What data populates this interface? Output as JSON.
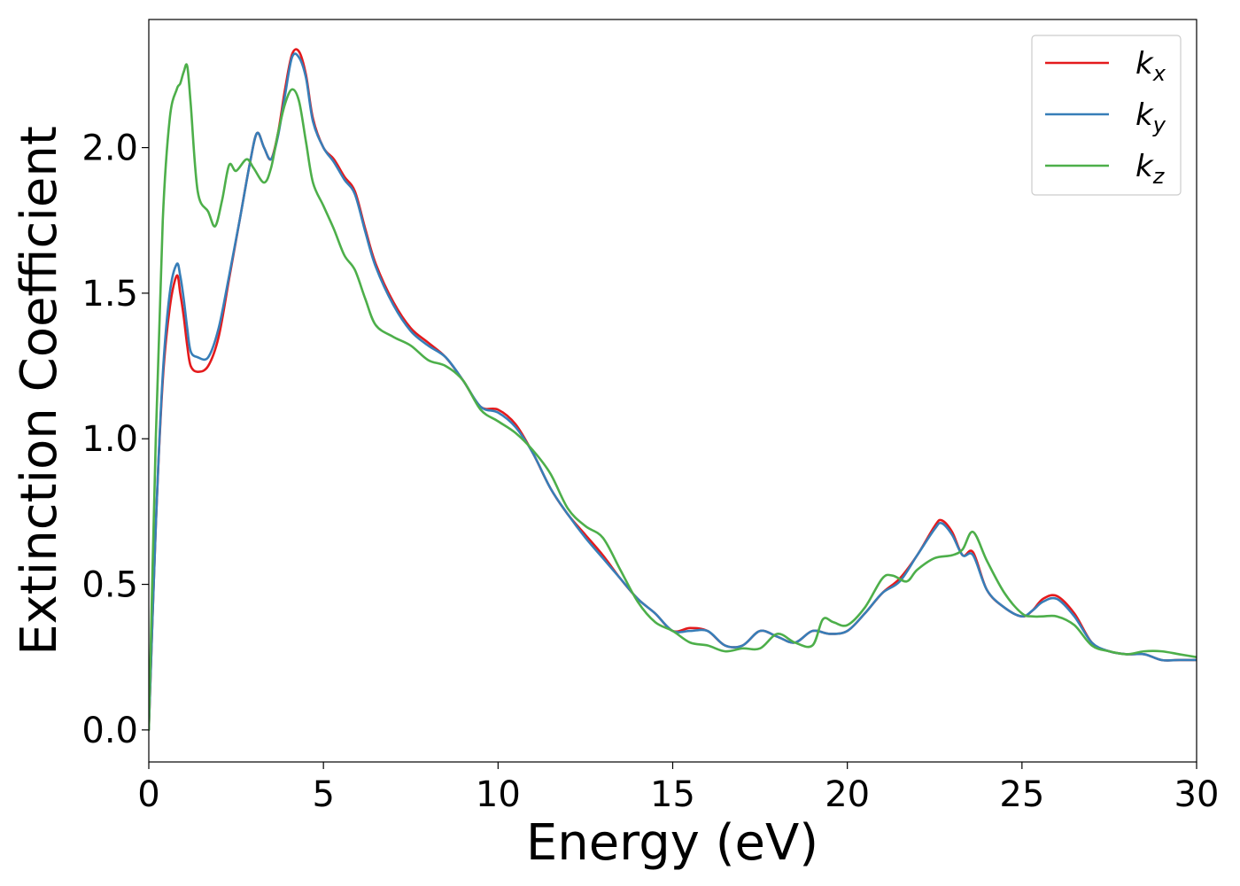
{
  "chart_data": {
    "type": "line",
    "xlabel": "Energy (eV)",
    "ylabel": "Extinction Coefficient",
    "xlim": [
      0,
      30
    ],
    "ylim": [
      -0.11,
      2.44
    ],
    "xticks": [
      0,
      5,
      10,
      15,
      20,
      25,
      30
    ],
    "xtick_labels": [
      "0",
      "5",
      "10",
      "15",
      "20",
      "25",
      "30"
    ],
    "yticks": [
      0.0,
      0.5,
      1.0,
      1.5,
      2.0
    ],
    "ytick_labels": [
      "0.0",
      "0.5",
      "1.0",
      "1.5",
      "2.0"
    ],
    "grid": false,
    "legend_position": "top-right",
    "series": [
      {
        "name": "kx",
        "base": "k",
        "sub": "x",
        "color": "#e41a1c",
        "x": [
          0,
          0.2,
          0.4,
          0.6,
          0.8,
          0.9,
          1.0,
          1.1,
          1.2,
          1.4,
          1.7,
          2.0,
          2.3,
          2.6,
          2.9,
          3.1,
          3.3,
          3.5,
          3.7,
          3.9,
          4.1,
          4.3,
          4.5,
          4.7,
          5.0,
          5.3,
          5.6,
          5.9,
          6.2,
          6.5,
          7.0,
          7.5,
          8.0,
          8.5,
          9.0,
          9.5,
          10.0,
          10.5,
          11.0,
          11.5,
          12.0,
          12.5,
          13.0,
          13.5,
          14.0,
          14.5,
          15.0,
          15.5,
          16.0,
          16.5,
          17.0,
          17.5,
          18.0,
          18.5,
          19.0,
          19.5,
          20.0,
          20.5,
          21.0,
          21.5,
          22.0,
          22.5,
          22.7,
          23.0,
          23.3,
          23.6,
          24.0,
          24.5,
          25.0,
          25.3,
          25.6,
          26.0,
          26.5,
          27.0,
          27.5,
          28.0,
          28.5,
          29.0,
          29.5,
          30.0
        ],
        "y": [
          0.0,
          0.7,
          1.2,
          1.45,
          1.56,
          1.5,
          1.42,
          1.32,
          1.25,
          1.23,
          1.25,
          1.35,
          1.55,
          1.75,
          1.95,
          2.05,
          2.0,
          1.96,
          2.05,
          2.2,
          2.32,
          2.33,
          2.25,
          2.1,
          2.0,
          1.96,
          1.9,
          1.85,
          1.72,
          1.6,
          1.47,
          1.38,
          1.33,
          1.28,
          1.2,
          1.11,
          1.1,
          1.05,
          0.95,
          0.83,
          0.74,
          0.67,
          0.6,
          0.52,
          0.45,
          0.4,
          0.34,
          0.35,
          0.34,
          0.29,
          0.29,
          0.34,
          0.32,
          0.3,
          0.34,
          0.33,
          0.34,
          0.4,
          0.47,
          0.52,
          0.6,
          0.7,
          0.72,
          0.68,
          0.6,
          0.61,
          0.48,
          0.42,
          0.39,
          0.41,
          0.45,
          0.46,
          0.4,
          0.3,
          0.27,
          0.26,
          0.26,
          0.24,
          0.24,
          0.24
        ]
      },
      {
        "name": "ky",
        "base": "k",
        "sub": "y",
        "color": "#377eb8",
        "x": [
          0,
          0.2,
          0.4,
          0.6,
          0.8,
          0.9,
          1.0,
          1.1,
          1.2,
          1.4,
          1.7,
          2.0,
          2.3,
          2.6,
          2.9,
          3.1,
          3.3,
          3.5,
          3.7,
          3.9,
          4.1,
          4.3,
          4.5,
          4.7,
          5.0,
          5.3,
          5.6,
          5.9,
          6.2,
          6.5,
          7.0,
          7.5,
          8.0,
          8.5,
          9.0,
          9.5,
          10.0,
          10.5,
          11.0,
          11.5,
          12.0,
          12.5,
          13.0,
          13.5,
          14.0,
          14.5,
          15.0,
          15.5,
          16.0,
          16.5,
          17.0,
          17.5,
          18.0,
          18.5,
          19.0,
          19.5,
          20.0,
          20.5,
          21.0,
          21.5,
          22.0,
          22.5,
          22.7,
          23.0,
          23.3,
          23.6,
          24.0,
          24.5,
          25.0,
          25.3,
          25.6,
          26.0,
          26.5,
          27.0,
          27.5,
          28.0,
          28.5,
          29.0,
          29.5,
          30.0
        ],
        "y": [
          0.0,
          0.7,
          1.22,
          1.5,
          1.6,
          1.56,
          1.48,
          1.38,
          1.3,
          1.28,
          1.28,
          1.38,
          1.56,
          1.75,
          1.95,
          2.05,
          2.0,
          1.96,
          2.04,
          2.18,
          2.31,
          2.31,
          2.24,
          2.09,
          2.0,
          1.95,
          1.89,
          1.84,
          1.71,
          1.59,
          1.46,
          1.37,
          1.32,
          1.28,
          1.2,
          1.11,
          1.09,
          1.04,
          0.95,
          0.83,
          0.74,
          0.66,
          0.59,
          0.52,
          0.45,
          0.4,
          0.34,
          0.34,
          0.34,
          0.29,
          0.29,
          0.34,
          0.32,
          0.3,
          0.34,
          0.33,
          0.34,
          0.4,
          0.47,
          0.51,
          0.6,
          0.69,
          0.71,
          0.67,
          0.6,
          0.6,
          0.48,
          0.42,
          0.39,
          0.41,
          0.44,
          0.45,
          0.39,
          0.3,
          0.27,
          0.26,
          0.26,
          0.24,
          0.24,
          0.24
        ]
      },
      {
        "name": "kz",
        "base": "k",
        "sub": "z",
        "color": "#4daf4a",
        "x": [
          0,
          0.2,
          0.4,
          0.6,
          0.8,
          0.9,
          1.0,
          1.1,
          1.2,
          1.4,
          1.7,
          1.9,
          2.1,
          2.3,
          2.5,
          2.8,
          3.0,
          3.3,
          3.5,
          3.7,
          3.9,
          4.1,
          4.3,
          4.5,
          4.7,
          5.0,
          5.3,
          5.6,
          5.9,
          6.2,
          6.5,
          7.0,
          7.5,
          8.0,
          8.5,
          9.0,
          9.5,
          10.0,
          10.5,
          11.0,
          11.5,
          12.0,
          12.5,
          13.0,
          13.5,
          14.0,
          14.5,
          15.0,
          15.5,
          16.0,
          16.5,
          17.0,
          17.5,
          18.0,
          18.5,
          19.0,
          19.3,
          19.6,
          20.0,
          20.5,
          21.0,
          21.3,
          21.7,
          22.0,
          22.5,
          23.0,
          23.3,
          23.6,
          24.0,
          24.5,
          25.0,
          25.3,
          25.6,
          26.0,
          26.5,
          27.0,
          27.5,
          28.0,
          28.5,
          29.0,
          29.5,
          30.0
        ],
        "y": [
          0.0,
          1.0,
          1.75,
          2.1,
          2.2,
          2.22,
          2.26,
          2.28,
          2.15,
          1.85,
          1.78,
          1.73,
          1.82,
          1.94,
          1.92,
          1.96,
          1.93,
          1.88,
          1.93,
          2.05,
          2.15,
          2.2,
          2.16,
          2.02,
          1.88,
          1.8,
          1.72,
          1.63,
          1.58,
          1.48,
          1.39,
          1.35,
          1.32,
          1.27,
          1.25,
          1.2,
          1.1,
          1.06,
          1.02,
          0.96,
          0.88,
          0.76,
          0.7,
          0.66,
          0.55,
          0.44,
          0.37,
          0.34,
          0.3,
          0.29,
          0.27,
          0.28,
          0.28,
          0.33,
          0.3,
          0.29,
          0.38,
          0.37,
          0.36,
          0.42,
          0.52,
          0.53,
          0.51,
          0.55,
          0.59,
          0.6,
          0.62,
          0.68,
          0.58,
          0.47,
          0.4,
          0.39,
          0.39,
          0.39,
          0.36,
          0.29,
          0.27,
          0.26,
          0.27,
          0.27,
          0.26,
          0.25
        ]
      }
    ]
  }
}
